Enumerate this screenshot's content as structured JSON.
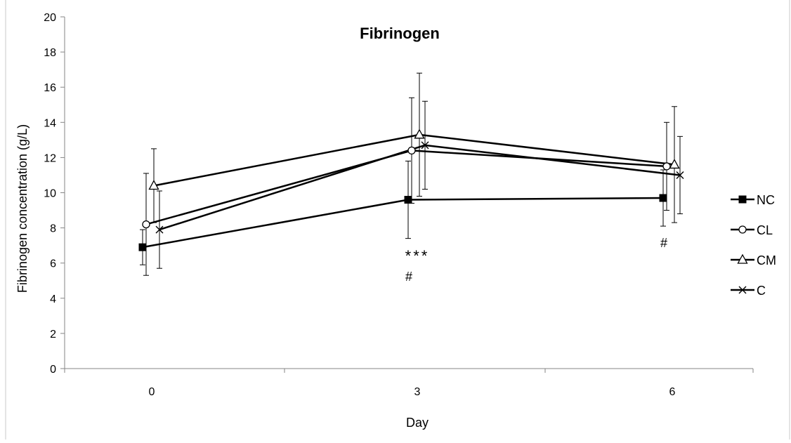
{
  "chart_data": {
    "type": "line",
    "title": "Fibrinogen",
    "xlabel": "Day",
    "ylabel": "Fibrinogen concentration (g/L)",
    "categories": [
      "0",
      "3",
      "6"
    ],
    "ylim": [
      0,
      20
    ],
    "yticks": [
      0,
      2,
      4,
      6,
      8,
      10,
      12,
      14,
      16,
      18,
      20
    ],
    "grid": false,
    "legend_position": "right",
    "series": [
      {
        "name": "NC",
        "marker": "square-filled",
        "values": [
          6.9,
          9.6,
          9.7
        ],
        "error": [
          1.0,
          2.2,
          1.6
        ]
      },
      {
        "name": "CL",
        "marker": "circle-open",
        "values": [
          8.2,
          12.4,
          11.5
        ],
        "error": [
          2.9,
          3.0,
          2.5
        ]
      },
      {
        "name": "CM",
        "marker": "triangle-open",
        "values": [
          10.4,
          13.3,
          11.6
        ],
        "error": [
          2.1,
          3.5,
          3.3
        ]
      },
      {
        "name": "C",
        "marker": "x",
        "values": [
          7.9,
          12.7,
          11.0
        ],
        "error": [
          2.2,
          2.5,
          2.2
        ]
      }
    ],
    "annotations": [
      {
        "text": "***",
        "category": "3",
        "y": 6.1
      },
      {
        "text": "#",
        "category": "3",
        "y": 5.0
      },
      {
        "text": "#",
        "category": "6",
        "y": 6.9
      }
    ],
    "colors": {
      "line": "#000000",
      "axis": "#868686",
      "error_bar": "#000000"
    }
  }
}
